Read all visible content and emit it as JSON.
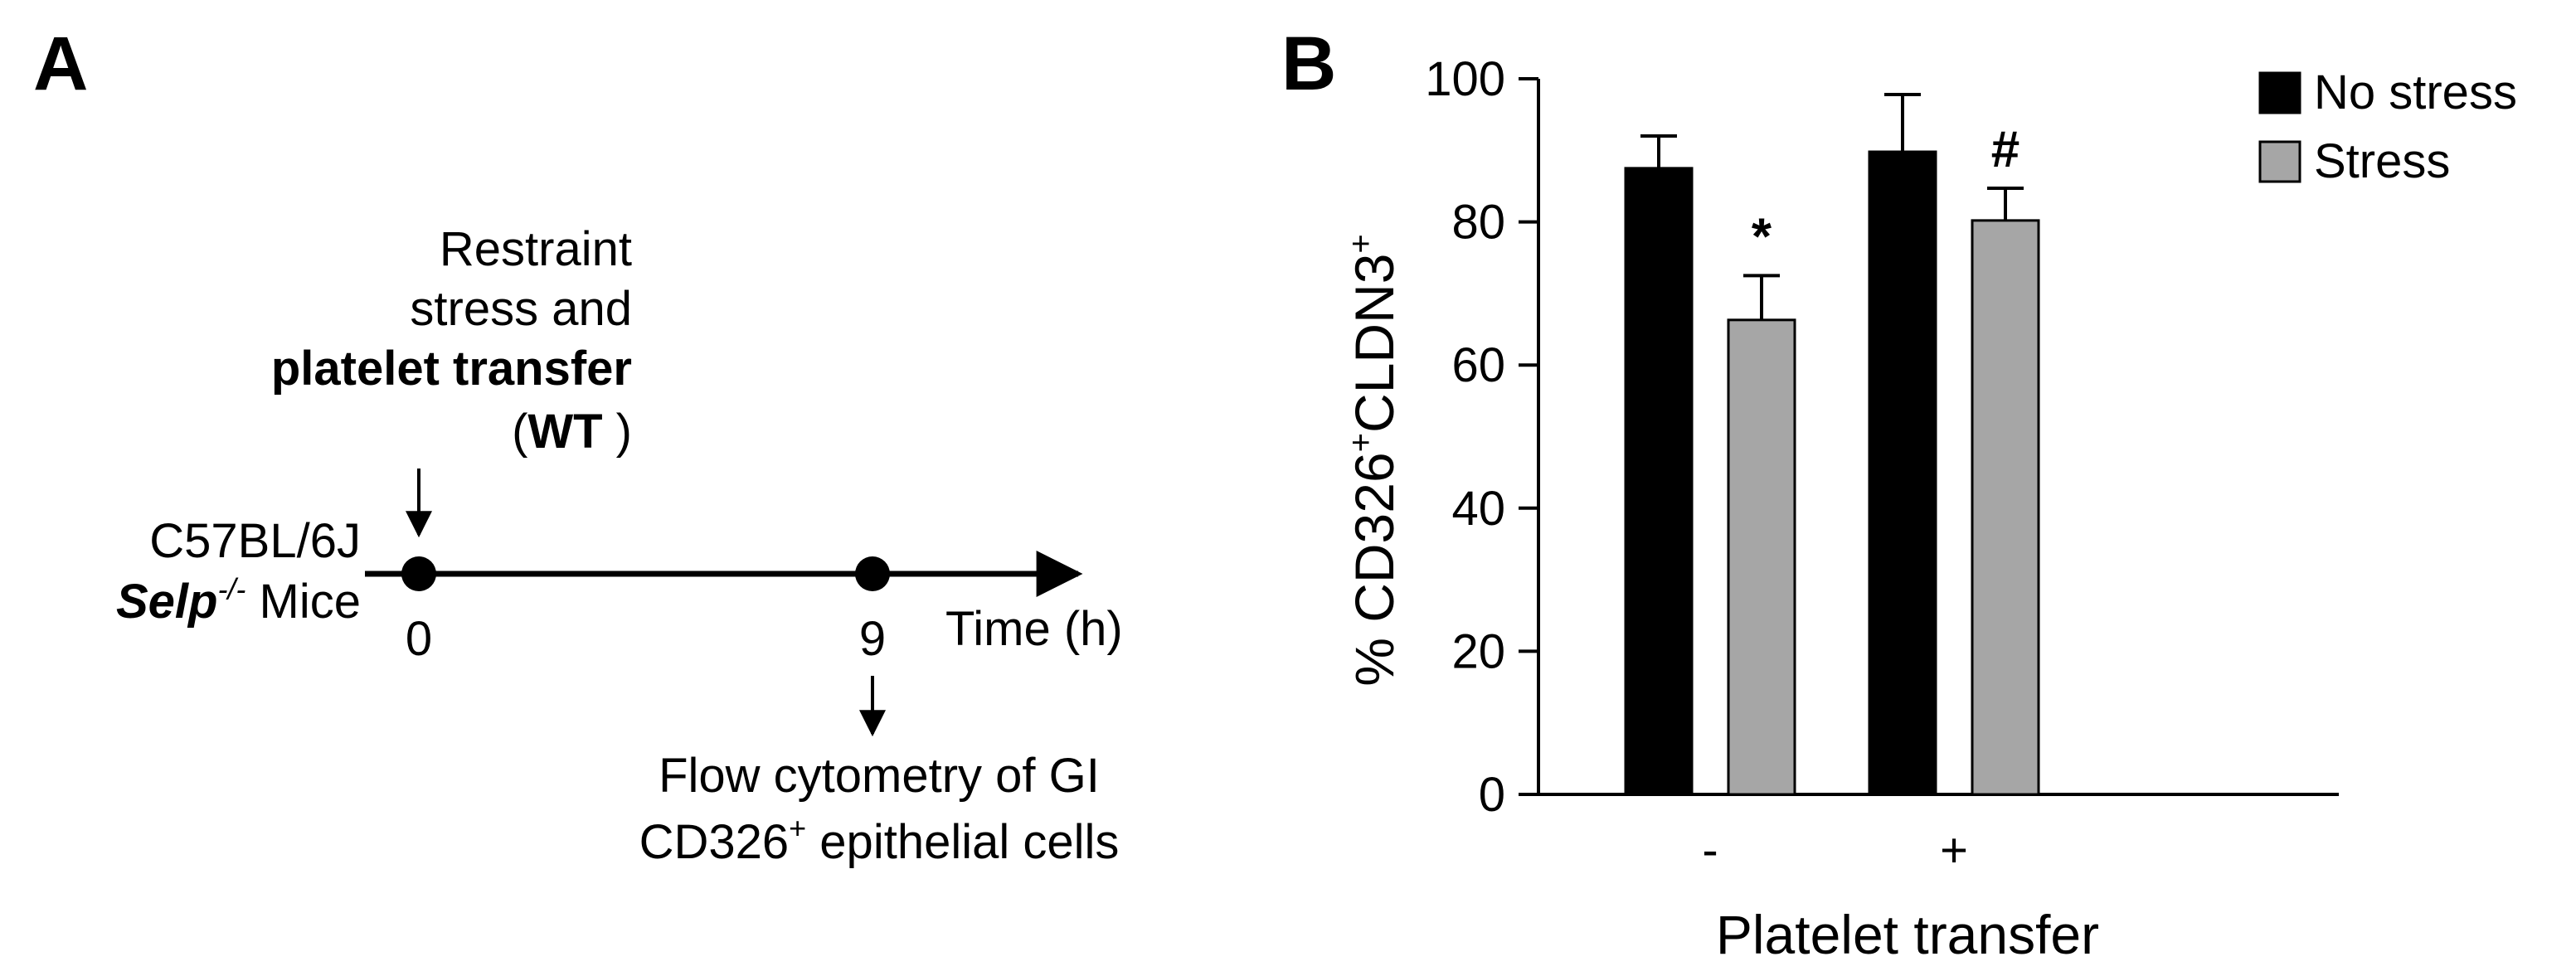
{
  "panel_a": {
    "label": "A",
    "event_lines": [
      "Restraint",
      "stress and"
    ],
    "event_bold": "platelet transfer",
    "event_paren_open": "(",
    "event_paren_bold": "WT",
    "event_paren_close": " )",
    "strain": "C57BL/6J",
    "genotype_gene": "Selp",
    "genotype_sup": "-/-",
    "genotype_tail": " Mice",
    "timepoints": [
      "0",
      "9"
    ],
    "axis_label": "Time (h)",
    "readout_line1": "Flow cytometry of GI",
    "readout_line2_pre": "CD326",
    "readout_line2_sup": "+",
    "readout_line2_post": " epithelial cells"
  },
  "panel_b": {
    "label": "B",
    "ylabel_pre": "% CD326",
    "ylabel_sup1": "+",
    "ylabel_mid": "CLDN3",
    "ylabel_sup2": "+"
  },
  "chart_data": {
    "type": "bar",
    "title": "",
    "xlabel": "Platelet transfer",
    "ylabel": "% CD326+CLDN3+",
    "categories": [
      "-",
      "+"
    ],
    "ylim": [
      0,
      100
    ],
    "yticks": [
      0,
      20,
      40,
      60,
      80,
      100
    ],
    "series": [
      {
        "name": "No stress",
        "color": "#000000",
        "values": [
          87.5,
          89.8
        ],
        "errors": [
          4.5,
          8.0
        ],
        "annotations": [
          "",
          ""
        ]
      },
      {
        "name": "Stress",
        "color": "#a6a6a6",
        "values": [
          66.3,
          80.2
        ],
        "errors": [
          6.2,
          4.5
        ],
        "annotations": [
          "*",
          "#"
        ]
      }
    ],
    "legend_position": "top-right",
    "grid": false
  }
}
